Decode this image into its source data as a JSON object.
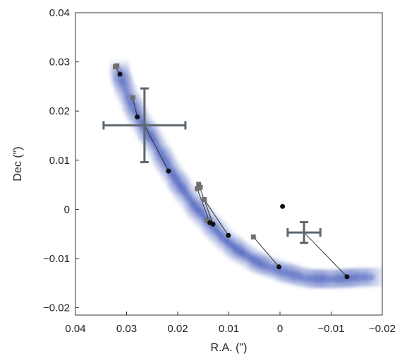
{
  "chart_data": {
    "type": "scatter",
    "xlabel": "R.A. (\")",
    "ylabel": "Dec (\")",
    "xlim": [
      0.04,
      -0.02
    ],
    "ylim": [
      -0.0215,
      0.04
    ],
    "x_ticks": [
      0.04,
      0.03,
      0.02,
      0.01,
      0,
      -0.01,
      -0.02
    ],
    "x_tick_labels": [
      "0.04",
      "0.03",
      "0.02",
      "0.01",
      "0",
      "−0.01",
      "−0.02"
    ],
    "y_ticks": [
      -0.02,
      -0.01,
      0,
      0.01,
      0.02,
      0.03,
      0.04
    ],
    "y_tick_labels": [
      "−0.02",
      "−0.01",
      "0",
      "0.01",
      "0.02",
      "0.03",
      "0.04"
    ],
    "grid": false,
    "colors": {
      "arc": "#3d55b8",
      "model_points": "#111111",
      "observed_points": "#6f6f6f",
      "error_bars": "#5d676d",
      "links": "#333333"
    },
    "arc_path": [
      [
        0.0315,
        0.0285
      ],
      [
        0.0305,
        0.025
      ],
      [
        0.029,
        0.0215
      ],
      [
        0.027,
        0.0175
      ],
      [
        0.0245,
        0.0135
      ],
      [
        0.0215,
        0.008
      ],
      [
        0.019,
        0.004
      ],
      [
        0.0165,
        0.0005
      ],
      [
        0.014,
        -0.0025
      ],
      [
        0.011,
        -0.006
      ],
      [
        0.008,
        -0.0085
      ],
      [
        0.004,
        -0.011
      ],
      [
        0.0,
        -0.0125
      ],
      [
        -0.005,
        -0.014
      ],
      [
        -0.01,
        -0.0142
      ],
      [
        -0.0155,
        -0.0138
      ],
      [
        -0.019,
        -0.0138
      ]
    ],
    "model_points": [
      [
        0.0313,
        0.0275
      ],
      [
        0.0279,
        0.0188
      ],
      [
        0.0218,
        0.0078
      ],
      [
        0.0137,
        -0.0027
      ],
      [
        0.0131,
        -0.003
      ],
      [
        0.0101,
        -0.0053
      ],
      [
        0.0002,
        -0.0117
      ],
      [
        -0.0131,
        -0.0137
      ],
      [
        -0.0005,
        0.0006
      ]
    ],
    "observed_points": [
      [
        0.0322,
        0.029
      ],
      [
        0.0319,
        0.0292
      ],
      [
        0.0288,
        0.0227
      ],
      [
        0.0162,
        0.0042
      ],
      [
        0.0159,
        0.0051
      ],
      [
        0.0156,
        0.0045
      ],
      [
        0.0148,
        0.002
      ],
      [
        0.0142,
        -0.0022
      ],
      [
        0.0052,
        -0.0056
      ]
    ],
    "links": [
      [
        [
          0.0322,
          0.029
        ],
        [
          0.0313,
          0.0275
        ]
      ],
      [
        [
          0.0288,
          0.0227
        ],
        [
          0.0279,
          0.0188
        ]
      ],
      [
        [
          0.0265,
          0.0171
        ],
        [
          0.0218,
          0.0078
        ]
      ],
      [
        [
          0.0162,
          0.0042
        ],
        [
          0.0137,
          -0.0027
        ]
      ],
      [
        [
          0.0159,
          0.0051
        ],
        [
          0.0131,
          -0.003
        ]
      ],
      [
        [
          0.0148,
          0.002
        ],
        [
          0.0101,
          -0.0053
        ]
      ],
      [
        [
          0.0052,
          -0.0056
        ],
        [
          0.0002,
          -0.0117
        ]
      ],
      [
        [
          -0.0047,
          -0.0047
        ],
        [
          -0.0131,
          -0.0137
        ]
      ]
    ],
    "error_bars": [
      {
        "x": 0.0265,
        "y": 0.0171,
        "x_err": 0.008,
        "y_err": 0.0075
      },
      {
        "x": -0.0047,
        "y": -0.0047,
        "x_err": 0.0032,
        "y_err": 0.0021
      }
    ]
  }
}
